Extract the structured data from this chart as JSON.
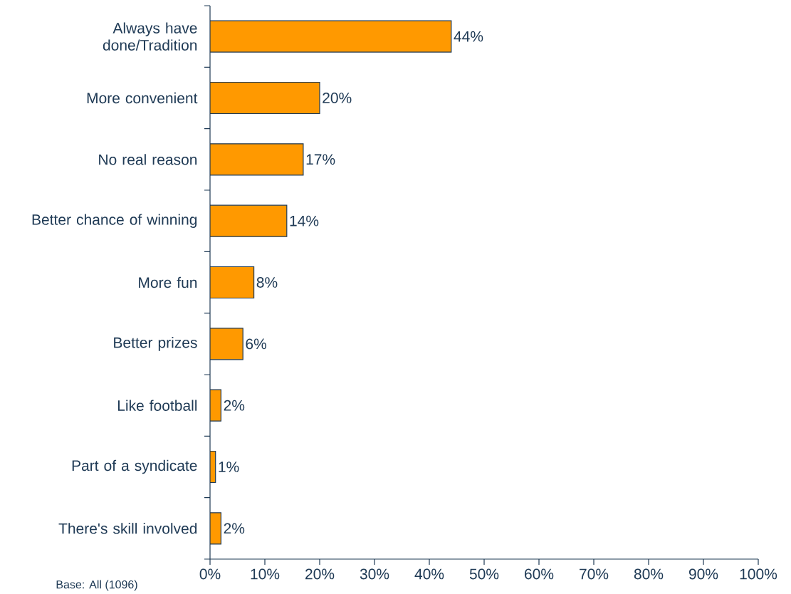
{
  "chart_data": {
    "type": "bar",
    "orientation": "horizontal",
    "categories": [
      "Always have done/Tradition",
      "More convenient",
      "No real reason",
      "Better chance of winning",
      "More fun",
      "Better prizes",
      "Like football",
      "Part of a syndicate",
      "There's skill involved"
    ],
    "values": [
      44,
      20,
      17,
      14,
      8,
      6,
      2,
      1,
      2
    ],
    "value_labels": [
      "44%",
      "20%",
      "17%",
      "14%",
      "8%",
      "6%",
      "2%",
      "1%",
      "2%"
    ],
    "color": "#ff9900",
    "xlim": [
      0,
      100
    ],
    "xticks": [
      {
        "value": 0,
        "label": "0%"
      },
      {
        "value": 10,
        "label": "10%"
      },
      {
        "value": 20,
        "label": "20%"
      },
      {
        "value": 30,
        "label": "30%"
      },
      {
        "value": 40,
        "label": "40%"
      },
      {
        "value": 50,
        "label": "50%"
      },
      {
        "value": 60,
        "label": "60%"
      },
      {
        "value": 70,
        "label": "70%"
      },
      {
        "value": 80,
        "label": "80%"
      },
      {
        "value": 90,
        "label": "90%"
      },
      {
        "value": 100,
        "label": "100%"
      }
    ],
    "annotations": [
      "Base: All (1096)"
    ]
  }
}
